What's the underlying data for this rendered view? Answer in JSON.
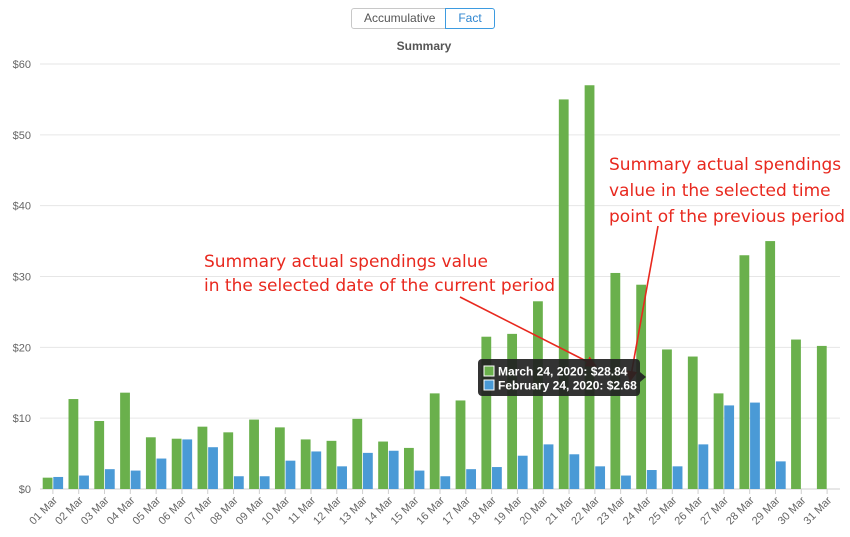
{
  "toggle": {
    "accumulative_label": "Accumulative",
    "fact_label": "Fact"
  },
  "chart_data": {
    "type": "bar",
    "title": "Summary",
    "xlabel": "",
    "ylabel": "",
    "ylim": [
      0,
      60
    ],
    "yticks": [
      "$0",
      "$10",
      "$20",
      "$30",
      "$40",
      "$50",
      "$60"
    ],
    "categories": [
      "01 Mar",
      "02 Mar",
      "03 Mar",
      "04 Mar",
      "05 Mar",
      "06 Mar",
      "07 Mar",
      "08 Mar",
      "09 Mar",
      "10 Mar",
      "11 Mar",
      "12 Mar",
      "13 Mar",
      "14 Mar",
      "15 Mar",
      "16 Mar",
      "17 Mar",
      "18 Mar",
      "19 Mar",
      "20 Mar",
      "21 Mar",
      "22 Mar",
      "23 Mar",
      "24 Mar",
      "25 Mar",
      "26 Mar",
      "27 Mar",
      "28 Mar",
      "29 Mar",
      "30 Mar",
      "31 Mar"
    ],
    "series": [
      {
        "color": "#6ab04c",
        "values": [
          1.6,
          12.7,
          9.6,
          13.6,
          7.3,
          7.1,
          8.8,
          8.0,
          9.8,
          8.7,
          7.0,
          6.8,
          9.9,
          6.7,
          5.8,
          13.5,
          12.5,
          21.5,
          21.9,
          26.5,
          55,
          57,
          30.5,
          28.84,
          19.7,
          18.7,
          13.5,
          33,
          35,
          21.1,
          20.2
        ]
      },
      {
        "color": "#4a9ad6",
        "values": [
          1.7,
          1.9,
          2.8,
          2.6,
          4.3,
          7.0,
          5.9,
          1.8,
          1.8,
          4.0,
          5.3,
          3.2,
          5.1,
          5.4,
          2.6,
          1.8,
          2.8,
          3.1,
          4.7,
          6.3,
          4.9,
          3.2,
          1.9,
          2.68,
          3.2,
          6.3,
          11.8,
          12.2,
          3.9,
          0,
          0
        ]
      }
    ],
    "tooltip": {
      "lines": [
        "March 24, 2020: $28.84",
        "February 24, 2020: $2.68"
      ],
      "colors": [
        "#6ab04c",
        "#4a9ad6"
      ]
    },
    "annotations": [
      {
        "lines": [
          "Summary actual spendings value",
          "in the selected date of the current period"
        ]
      },
      {
        "lines": [
          "Summary actual spendings",
          "value in the selected time",
          "point of the previous period"
        ]
      }
    ]
  }
}
